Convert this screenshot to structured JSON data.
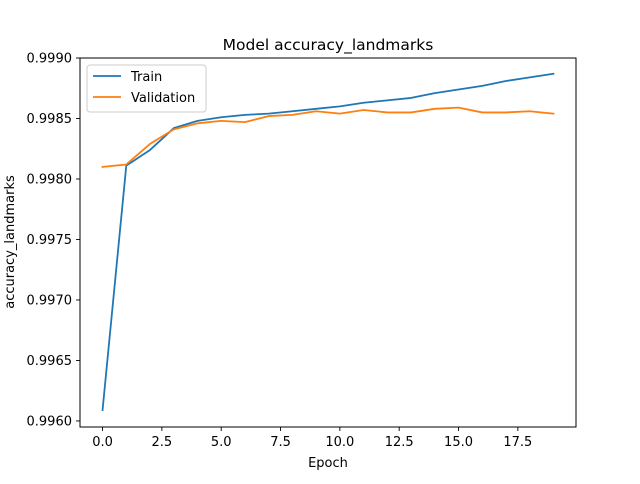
{
  "chart_data": {
    "type": "line",
    "title": "Model accuracy_landmarks",
    "xlabel": "Epoch",
    "ylabel": "accuracy_landmarks",
    "x": [
      0,
      1,
      2,
      3,
      4,
      5,
      6,
      7,
      8,
      9,
      10,
      11,
      12,
      13,
      14,
      15,
      16,
      17,
      18,
      19
    ],
    "xlim": [
      -0.95,
      19.95
    ],
    "ylim": [
      0.99595,
      0.999
    ],
    "xticks": [
      0.0,
      2.5,
      5.0,
      7.5,
      10.0,
      12.5,
      15.0,
      17.5
    ],
    "xtick_labels": [
      "0.0",
      "2.5",
      "5.0",
      "7.5",
      "10.0",
      "12.5",
      "15.0",
      "17.5"
    ],
    "yticks": [
      0.996,
      0.9965,
      0.997,
      0.9975,
      0.998,
      0.9985,
      0.999
    ],
    "ytick_labels": [
      "0.9960",
      "0.9965",
      "0.9970",
      "0.9975",
      "0.9980",
      "0.9985",
      "0.9990"
    ],
    "grid": false,
    "legend_position": "top-left",
    "series": [
      {
        "name": "Train",
        "color": "#1f77b4",
        "values": [
          0.99609,
          0.99811,
          0.99824,
          0.99842,
          0.99848,
          0.99851,
          0.99853,
          0.99854,
          0.99856,
          0.99858,
          0.9986,
          0.99863,
          0.99865,
          0.99867,
          0.99871,
          0.99874,
          0.99877,
          0.99881,
          0.99884,
          0.99887
        ]
      },
      {
        "name": "Validation",
        "color": "#ff7f0e",
        "values": [
          0.9981,
          0.99812,
          0.99829,
          0.99841,
          0.99846,
          0.99848,
          0.99847,
          0.99852,
          0.99853,
          0.99856,
          0.99854,
          0.99857,
          0.99855,
          0.99855,
          0.99858,
          0.99859,
          0.99855,
          0.99855,
          0.99856,
          0.99854
        ]
      }
    ]
  }
}
